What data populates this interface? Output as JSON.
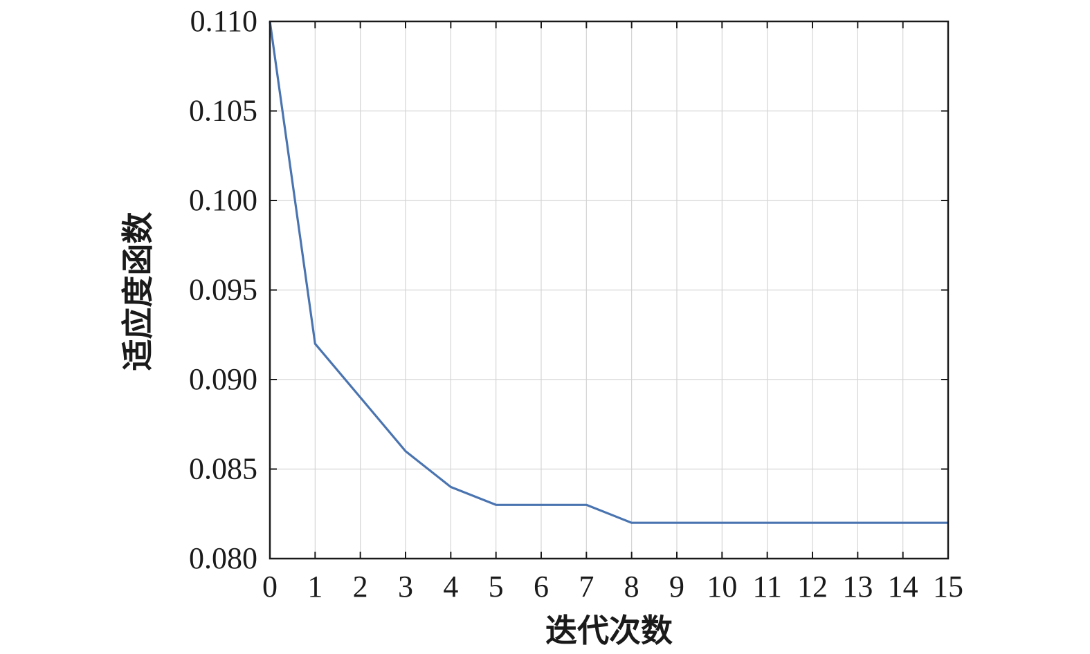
{
  "chart_data": {
    "type": "line",
    "title": "",
    "xlabel": "迭代次数",
    "ylabel": "适应度函数",
    "x": [
      0,
      1,
      2,
      3,
      4,
      5,
      6,
      7,
      8,
      9,
      10,
      11,
      12,
      13,
      14,
      15
    ],
    "series": [
      {
        "values": [
          0.11,
          0.092,
          0.089,
          0.086,
          0.084,
          0.083,
          0.083,
          0.083,
          0.082,
          0.082,
          0.082,
          0.082,
          0.082,
          0.082,
          0.082,
          0.082
        ]
      }
    ],
    "xlim": [
      0,
      15
    ],
    "ylim": [
      0.08,
      0.11
    ],
    "xticks": [
      "0",
      "1",
      "2",
      "3",
      "4",
      "5",
      "6",
      "7",
      "8",
      "9",
      "10",
      "11",
      "12",
      "13",
      "14",
      "15"
    ],
    "yticks": [
      "0.080",
      "0.085",
      "0.090",
      "0.095",
      "0.100",
      "0.105",
      "0.110"
    ],
    "grid": true,
    "colors": {
      "line": "#4a74b0",
      "grid": "#d4d4d4",
      "axis": "#1a1a1a"
    }
  }
}
